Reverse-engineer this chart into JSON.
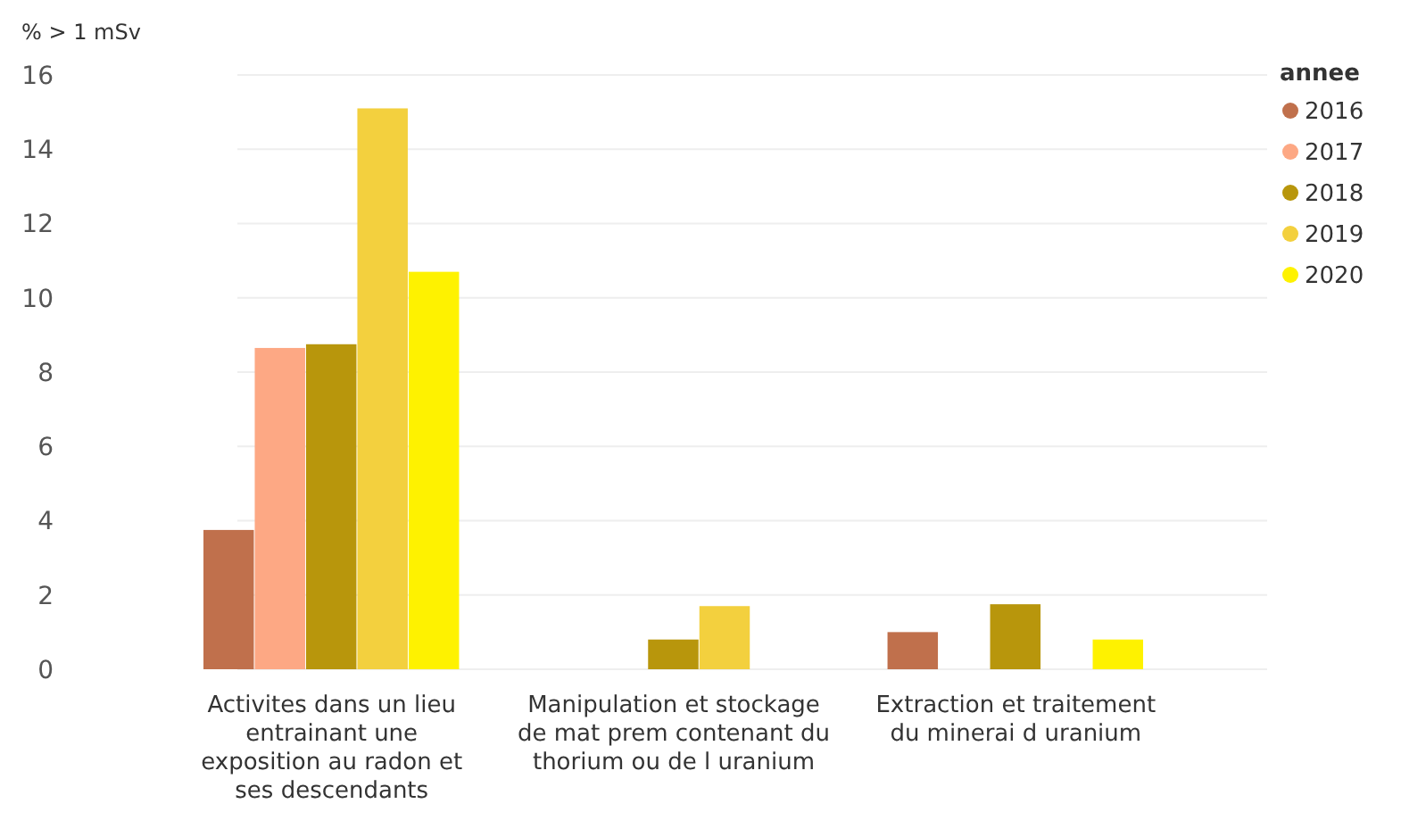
{
  "chart_data": {
    "type": "bar",
    "ylabel": "% > 1 mSv",
    "legend_title": "annee",
    "legend": "top right",
    "grid": "y",
    "categories": [
      "Activites dans un lieu entrainant une exposition au radon et ses descendants",
      "Manipulation et stockage de mat prem contenant du thorium ou de l uranium",
      "Extraction et traitement du minerai d uranium"
    ],
    "ylim": [
      0,
      16
    ],
    "yticks": [
      0,
      2,
      4,
      6,
      8,
      10,
      12,
      14,
      16
    ],
    "series": [
      {
        "name": "2016",
        "color": "#c0704c",
        "values": [
          3.75,
          null,
          1.0
        ]
      },
      {
        "name": "2017",
        "color": "#fda884",
        "values": [
          8.65,
          null,
          null
        ]
      },
      {
        "name": "2018",
        "color": "#b8960c",
        "values": [
          8.75,
          0.8,
          1.75
        ]
      },
      {
        "name": "2019",
        "color": "#f3d03e",
        "values": [
          15.1,
          1.7,
          null
        ]
      },
      {
        "name": "2020",
        "color": "#fef200",
        "values": [
          10.7,
          null,
          0.8
        ]
      }
    ]
  }
}
